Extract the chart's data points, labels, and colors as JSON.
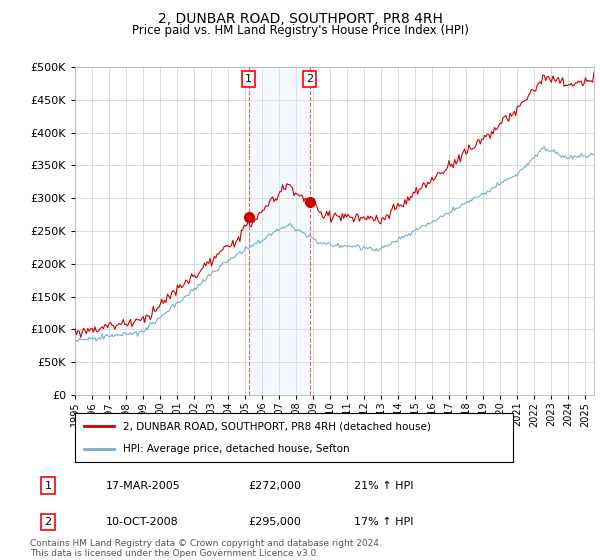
{
  "title": "2, DUNBAR ROAD, SOUTHPORT, PR8 4RH",
  "subtitle": "Price paid vs. HM Land Registry's House Price Index (HPI)",
  "title_fontsize": 10,
  "subtitle_fontsize": 8.5,
  "ylim": [
    0,
    500000
  ],
  "yticks": [
    0,
    50000,
    100000,
    150000,
    200000,
    250000,
    300000,
    350000,
    400000,
    450000,
    500000
  ],
  "sale1_date": "17-MAR-2005",
  "sale1_price": 272000,
  "sale1_hpi_pct": "21%",
  "sale1_year": 2005.21,
  "sale2_date": "10-OCT-2008",
  "sale2_price": 295000,
  "sale2_hpi_pct": "17%",
  "sale2_year": 2008.79,
  "legend_line1": "2, DUNBAR ROAD, SOUTHPORT, PR8 4RH (detached house)",
  "legend_line2": "HPI: Average price, detached house, Sefton",
  "footer": "Contains HM Land Registry data © Crown copyright and database right 2024.\nThis data is licensed under the Open Government Licence v3.0.",
  "line_color_red": "#cc0000",
  "line_color_blue": "#7aadcc",
  "background_color": "#ffffff",
  "grid_color": "#cccccc",
  "sale_marker_color": "#cc0000",
  "shade_color": "#ddeeff",
  "xmin": 1995,
  "xmax": 2025.5
}
